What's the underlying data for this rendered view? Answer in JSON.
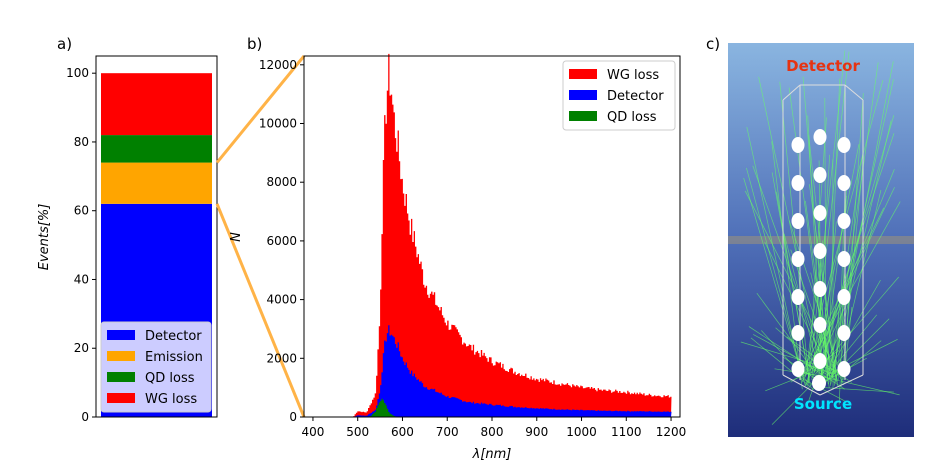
{
  "chart_data": [
    {
      "panel_label": "a)",
      "type": "bar",
      "stacked": true,
      "ylabel": "Events[%]",
      "ylim": [
        0,
        105
      ],
      "yticks": [
        0,
        20,
        40,
        60,
        80,
        100
      ],
      "segments": [
        {
          "name": "Detector",
          "value": 62,
          "color": "#0000ff"
        },
        {
          "name": "Emission",
          "value": 12,
          "color": "#ffa500"
        },
        {
          "name": "QD loss",
          "value": 8,
          "color": "#008000"
        },
        {
          "name": "WG loss",
          "value": 18,
          "color": "#ff0000"
        }
      ],
      "legend": {
        "placement": "lower-center",
        "entries": [
          "Detector",
          "Emission",
          "QD loss",
          "WG loss"
        ]
      },
      "zoom_connector": {
        "from_values": [
          62,
          74
        ],
        "to_ylim": [
          0,
          12300
        ],
        "color": "#ffb347"
      }
    },
    {
      "panel_label": "b)",
      "type": "histogram",
      "xlabel": "λ[nm]",
      "ylabel": "N",
      "xlim": [
        380,
        1220
      ],
      "ylim": [
        0,
        12300
      ],
      "xticks": [
        400,
        500,
        600,
        700,
        800,
        900,
        1000,
        1100,
        1200
      ],
      "yticks": [
        0,
        2000,
        4000,
        6000,
        8000,
        10000,
        12000
      ],
      "legend": {
        "placement": "top-right"
      },
      "series": [
        {
          "name": "WG loss",
          "color": "#ff0000",
          "x": [
            490,
            500,
            520,
            540,
            550,
            555,
            560,
            565,
            570,
            575,
            580,
            590,
            600,
            620,
            650,
            700,
            750,
            800,
            850,
            900,
            950,
            1000,
            1050,
            1100,
            1150,
            1200
          ],
          "y": [
            0,
            200,
            150,
            800,
            3500,
            7000,
            9500,
            11000,
            11700,
            11200,
            10300,
            9200,
            8000,
            6400,
            4600,
            3200,
            2400,
            1900,
            1550,
            1300,
            1150,
            1000,
            900,
            850,
            750,
            700
          ]
        },
        {
          "name": "Detector",
          "color": "#0000ff",
          "x": [
            490,
            500,
            520,
            540,
            550,
            555,
            560,
            565,
            570,
            575,
            580,
            590,
            600,
            620,
            650,
            700,
            750,
            800,
            850,
            900,
            950,
            1000,
            1050,
            1100,
            1150,
            1200
          ],
          "y": [
            0,
            60,
            40,
            250,
            900,
            1700,
            2400,
            2850,
            2950,
            2850,
            2700,
            2400,
            2000,
            1500,
            1050,
            700,
            500,
            420,
            350,
            300,
            260,
            230,
            210,
            200,
            190,
            180
          ]
        },
        {
          "name": "QD loss",
          "color": "#008000",
          "x": [
            520,
            530,
            540,
            545,
            550,
            555,
            560,
            565,
            570,
            580,
            590
          ],
          "y": [
            0,
            40,
            200,
            380,
            550,
            600,
            520,
            350,
            150,
            40,
            0
          ]
        }
      ]
    }
  ],
  "panel_c": {
    "label": "c)",
    "top_label": "Detector",
    "bottom_label": "Source",
    "top_label_color": "#e63312",
    "bottom_label_color": "#00e5ff"
  }
}
